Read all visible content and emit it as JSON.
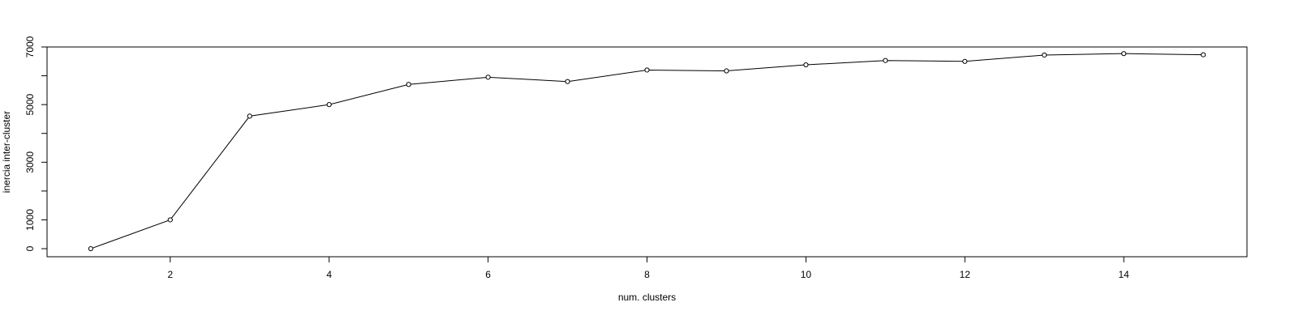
{
  "chart_data": {
    "type": "line",
    "title": "",
    "xlabel": "num. clusters",
    "ylabel": "inercia inter-cluster",
    "xlim": [
      0.45,
      15.55
    ],
    "ylim": [
      -280,
      7000
    ],
    "x_ticks": [
      2,
      4,
      6,
      8,
      10,
      12,
      14
    ],
    "x_tick_labels": [
      "2",
      "4",
      "6",
      "8",
      "10",
      "12",
      "14"
    ],
    "y_ticks": [
      0,
      1000,
      2000,
      3000,
      4000,
      5000,
      6000,
      7000
    ],
    "y_tick_labels": [
      "0",
      "1000",
      "",
      "3000",
      "",
      "5000",
      "",
      "7000"
    ],
    "grid": false,
    "marker": "open-circle",
    "series": [
      {
        "x": [
          1,
          2,
          3,
          4,
          5,
          6,
          7,
          8,
          9,
          10,
          11,
          12,
          13,
          14,
          15
        ],
        "values": [
          0,
          1000,
          4600,
          5000,
          5700,
          5950,
          5800,
          6200,
          6170,
          6380,
          6530,
          6500,
          6720,
          6770,
          6730
        ]
      }
    ],
    "color": "#000000"
  }
}
